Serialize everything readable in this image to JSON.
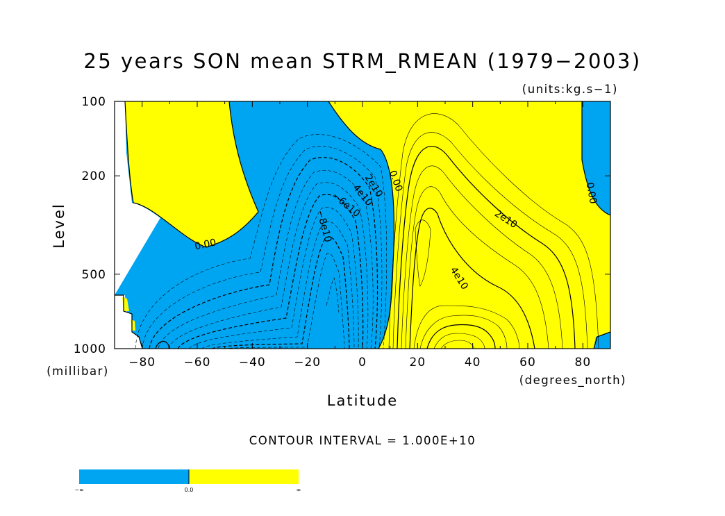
{
  "chart_data": {
    "type": "contour",
    "title": "25 years SON mean STRM_RMEAN (1979−2003)",
    "units_label": "(units:kg.s−1)",
    "xlabel": "Latitude",
    "x_unit_label": "(degrees_north)",
    "ylabel": "Level",
    "y_unit_label": "(millibar)",
    "xlim": [
      -90,
      90
    ],
    "ylim": [
      1000,
      100
    ],
    "y_scale": "log",
    "x_ticks": [
      {
        "value": -80,
        "label": "−80"
      },
      {
        "value": -60,
        "label": "−60"
      },
      {
        "value": -40,
        "label": "−40"
      },
      {
        "value": -20,
        "label": "−20"
      },
      {
        "value": 0,
        "label": "0"
      },
      {
        "value": 20,
        "label": "20"
      },
      {
        "value": 40,
        "label": "40"
      },
      {
        "value": 60,
        "label": "60"
      },
      {
        "value": 80,
        "label": "80"
      }
    ],
    "y_ticks": [
      {
        "value": 100,
        "label": "100"
      },
      {
        "value": 200,
        "label": "200"
      },
      {
        "value": 500,
        "label": "500"
      },
      {
        "value": 1000,
        "label": "1000"
      }
    ],
    "contour_interval_text": "CONTOUR INTERVAL = 1.000E+10",
    "contour_interval": 10000000000.0,
    "fill_colors": {
      "negative": "#00a5f2",
      "positive": "#ffff00"
    },
    "contour_labels": [
      {
        "text": "0.00",
        "lat": -57,
        "lev": 380,
        "angle": -12
      },
      {
        "text": "0.00",
        "lat": 12,
        "lev": 210,
        "angle": 70
      },
      {
        "text": "0.00",
        "lat": 83,
        "lev": 235,
        "angle": 80
      },
      {
        "text": "2e10",
        "lat": 4,
        "lev": 220,
        "angle": 58
      },
      {
        "text": "4e10",
        "lat": 0,
        "lev": 240,
        "angle": 50
      },
      {
        "text": "−6e10",
        "lat": -6,
        "lev": 262,
        "angle": 40
      },
      {
        "text": "−8e10",
        "lat": -14,
        "lev": 320,
        "angle": 75
      },
      {
        "text": "2e10",
        "lat": 52,
        "lev": 300,
        "angle": 33
      },
      {
        "text": "4e10",
        "lat": 35,
        "lev": 520,
        "angle": 58
      }
    ],
    "colorbar": {
      "labels": [
        "−∞",
        "0.0",
        "∞"
      ],
      "colors": [
        "#00a5f2",
        "#ffff00"
      ]
    }
  }
}
